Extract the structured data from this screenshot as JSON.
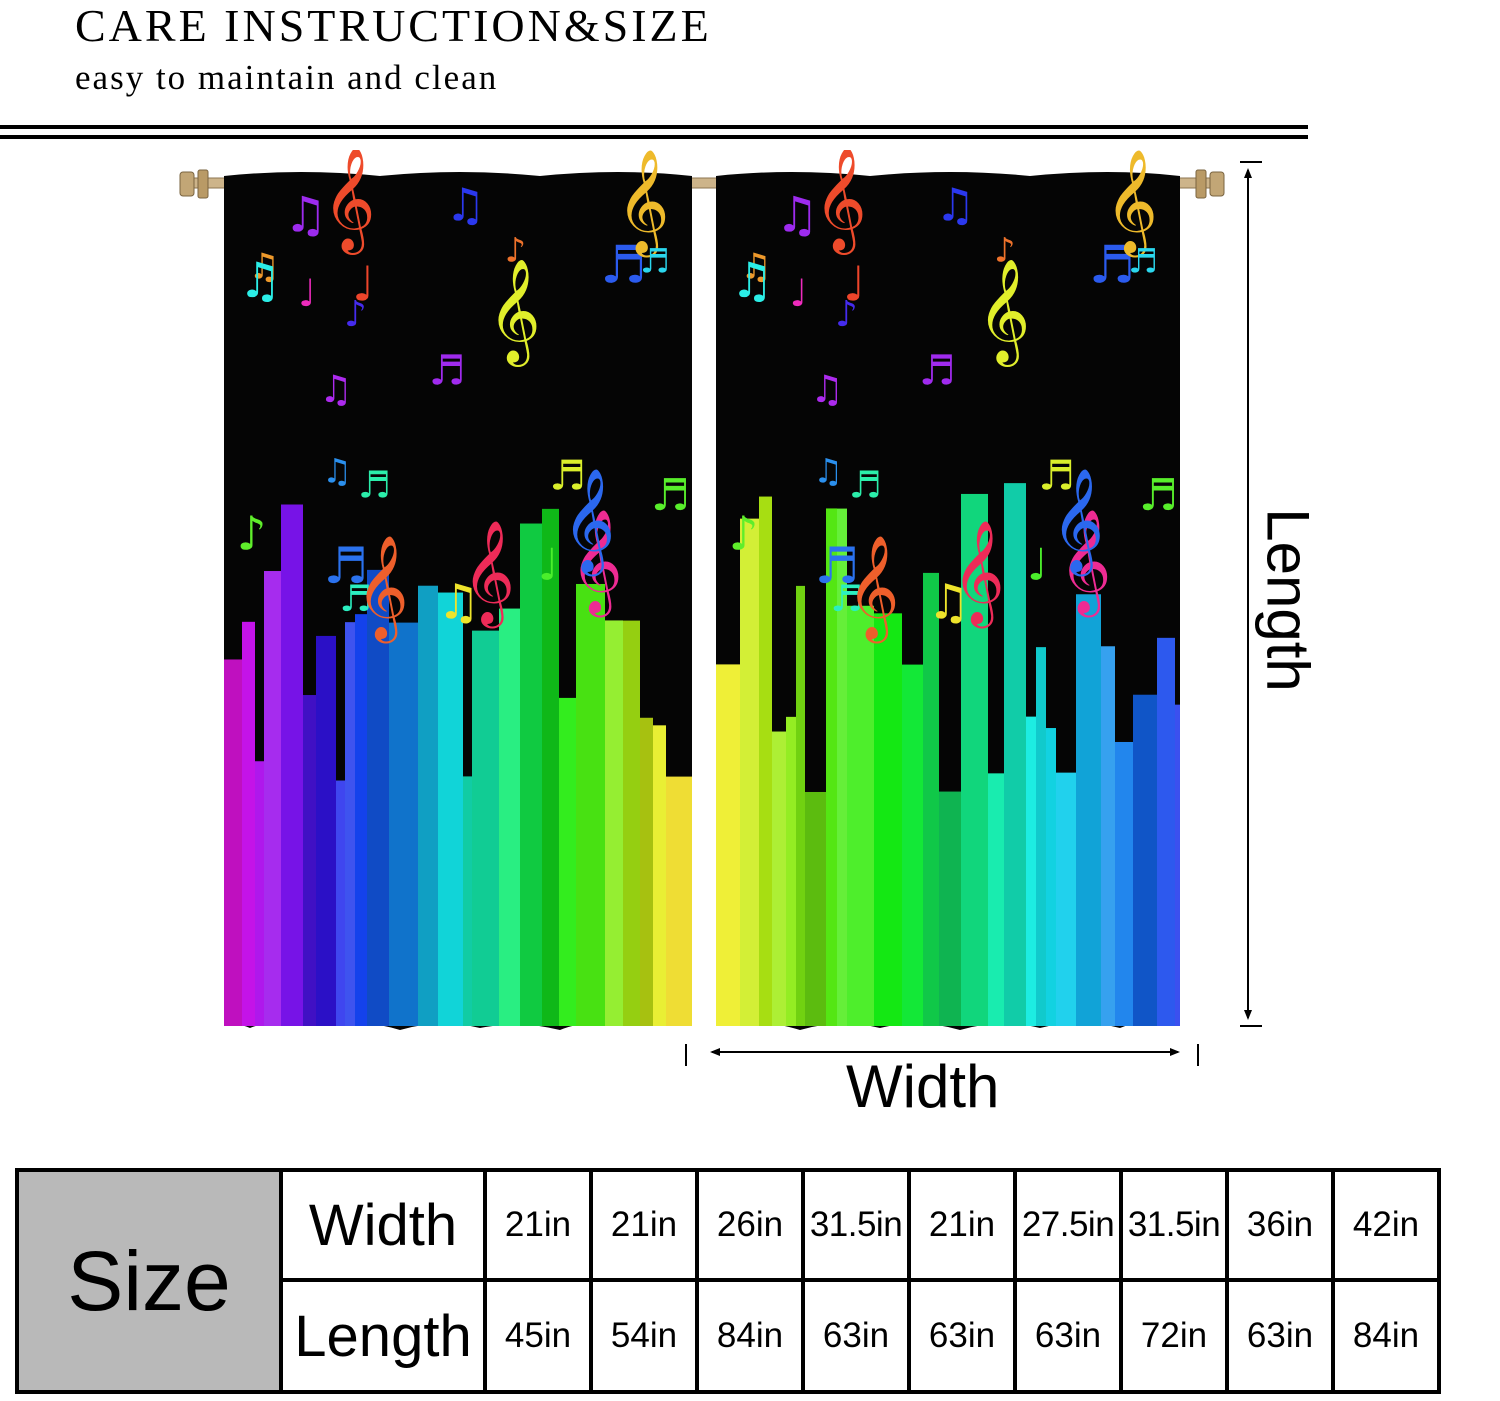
{
  "header": {
    "title": "CARE INSTRUCTION&SIZE",
    "subtitle": "easy to maintain and clean"
  },
  "dimension_labels": {
    "width": "Width",
    "length": "Length"
  },
  "size_table": {
    "label": "Size",
    "row_labels": [
      "Width",
      "Length"
    ],
    "widths": [
      "21in",
      "21in",
      "26in",
      "31.5in",
      "21in",
      "27.5in",
      "31.5in",
      "36in",
      "42in"
    ],
    "lengths": [
      "45in",
      "54in",
      "84in",
      "63in",
      "63in",
      "63in",
      "72in",
      "63in",
      "84in"
    ]
  },
  "colors": {
    "curtain_background": "#050505",
    "rod": "#c8ad7f",
    "table_header_fill": "#b9b9b9"
  }
}
